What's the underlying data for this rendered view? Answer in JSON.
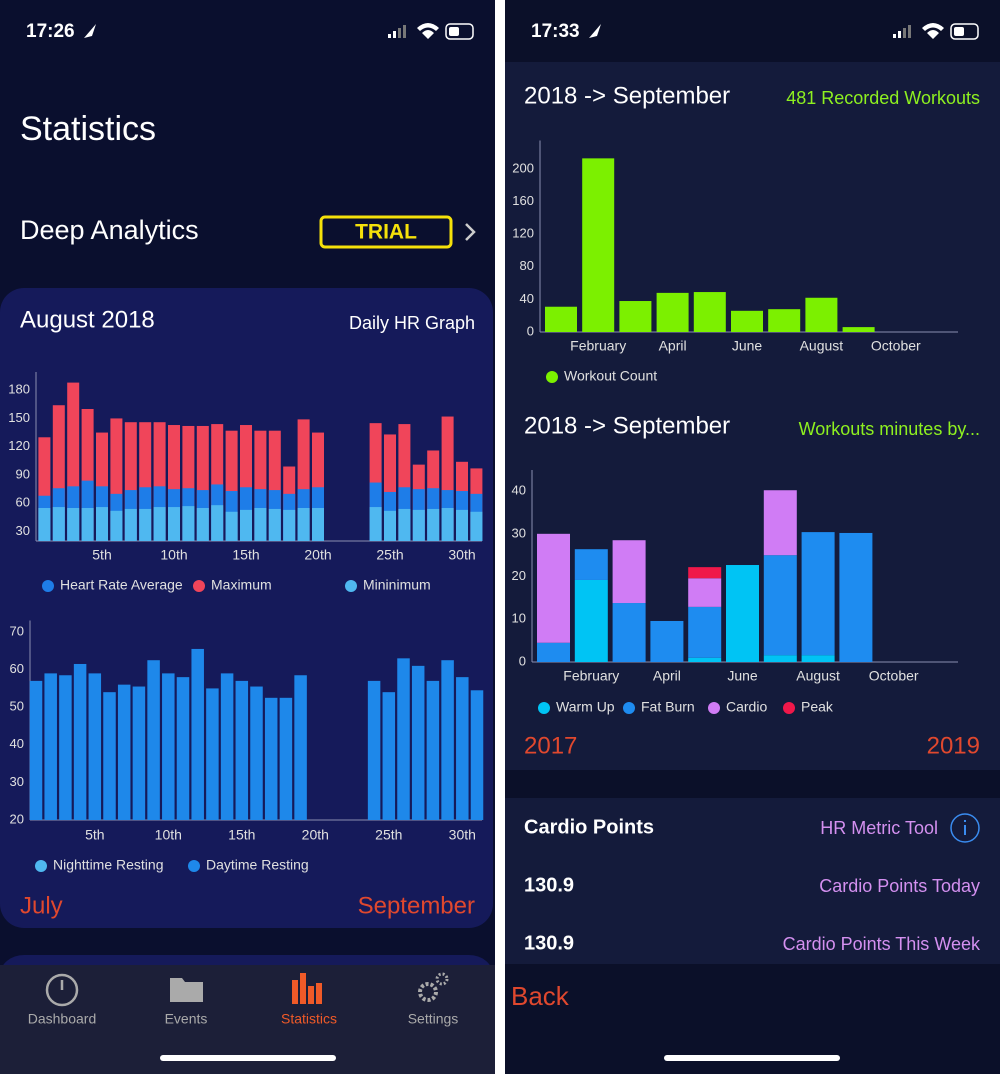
{
  "left_screen": {
    "status_time": "17:26",
    "heading": "Statistics",
    "deep_analytics": "Deep Analytics",
    "badge": "TRIAL",
    "range_start": "July",
    "range_end": "September",
    "tabs": [
      "Dashboard",
      "Events",
      "Statistics",
      "Settings"
    ]
  },
  "right_screen": {
    "status_time": "17:33",
    "range_start": "2017",
    "range_end": "2019",
    "cardio_points": {
      "title": "Cardio Points",
      "tool": "HR Metric Tool",
      "rows": [
        {
          "value": 130.9,
          "label": "Cardio Points Today"
        },
        {
          "value": 130.9,
          "label": "Cardio Points This Week"
        }
      ]
    },
    "back": "Back"
  },
  "chart_data": [
    {
      "type": "bar",
      "stacked": false,
      "title": "August 2018",
      "subtitle": "Daily HR Graph",
      "categories": [
        null,
        null,
        null,
        null,
        "5th",
        null,
        null,
        null,
        null,
        "10th",
        null,
        null,
        null,
        null,
        "15th",
        null,
        null,
        null,
        null,
        "20th",
        null,
        null,
        null,
        null,
        "25th",
        null,
        null,
        null,
        null,
        "30th",
        null
      ],
      "series": [
        {
          "name": "Heart Rate Average",
          "color": "#1e7de8",
          "values": [
            68,
            76,
            78,
            84,
            78,
            70,
            74,
            77,
            78,
            75,
            76,
            74,
            80,
            73,
            77,
            75,
            74,
            70,
            75,
            77,
            null,
            null,
            null,
            82,
            72,
            77,
            75,
            76,
            74,
            73,
            70
          ]
        },
        {
          "name": "Maximum",
          "color": "#f0455a",
          "values": [
            130,
            164,
            188,
            160,
            135,
            150,
            146,
            146,
            146,
            143,
            142,
            142,
            144,
            137,
            143,
            137,
            137,
            99,
            149,
            135,
            null,
            null,
            null,
            145,
            133,
            144,
            101,
            116,
            152,
            104,
            97
          ]
        },
        {
          "name": "Mininimum",
          "color": "#4fb8f0",
          "values": [
            55,
            56,
            55,
            55,
            56,
            52,
            54,
            54,
            56,
            56,
            57,
            55,
            58,
            51,
            53,
            55,
            54,
            53,
            55,
            55,
            null,
            null,
            null,
            56,
            52,
            54,
            53,
            54,
            55,
            53,
            51
          ]
        }
      ],
      "ylim": [
        20,
        195
      ],
      "yticks": [
        30,
        60,
        90,
        120,
        150,
        180
      ]
    },
    {
      "type": "bar",
      "stacked": false,
      "categories": [
        null,
        null,
        null,
        null,
        "5th",
        null,
        null,
        null,
        null,
        "10th",
        null,
        null,
        null,
        null,
        "15th",
        null,
        null,
        null,
        null,
        "20th",
        null,
        null,
        null,
        null,
        "25th",
        null,
        null,
        null,
        null,
        "30th",
        null
      ],
      "series": [
        {
          "name": "Nighttime Resting",
          "color": "#4fb8f0",
          "values": [
            null,
            null,
            null,
            null,
            null,
            null,
            null,
            null,
            null,
            null,
            null,
            null,
            null,
            null,
            null,
            null,
            null,
            null,
            null,
            null,
            null,
            null,
            null,
            null,
            null,
            null,
            null,
            null,
            null,
            null,
            null
          ]
        },
        {
          "name": "Daytime Resting",
          "color": "#1e88ea",
          "values": [
            57,
            59,
            58.5,
            61.5,
            59,
            54,
            56,
            55.5,
            62.5,
            59,
            58,
            65.5,
            55,
            59,
            57,
            55.5,
            52.5,
            52.5,
            58.5,
            null,
            null,
            null,
            null,
            57,
            54,
            63,
            61,
            57,
            62.5,
            58,
            54.5
          ]
        }
      ],
      "ylim": [
        20,
        72
      ],
      "yticks": [
        20,
        30,
        40,
        50,
        60,
        70
      ]
    },
    {
      "type": "bar",
      "stacked": false,
      "title": "2018 -> September",
      "subtitle": "481 Recorded Workouts",
      "categories": [
        null,
        "February",
        null,
        "April",
        null,
        "June",
        null,
        "August",
        null,
        "October",
        null
      ],
      "series": [
        {
          "name": "Workout Count",
          "color": "#7cf000",
          "values": [
            31,
            213,
            38,
            48,
            49,
            26,
            28,
            42,
            6,
            null,
            null
          ]
        }
      ],
      "ylim": [
        0,
        230
      ],
      "yticks": [
        0,
        40,
        80,
        120,
        160,
        200
      ]
    },
    {
      "type": "bar",
      "stacked": true,
      "title": "2018 -> September",
      "subtitle": "Workouts minutes by...",
      "categories": [
        null,
        "February",
        null,
        "April",
        null,
        "June",
        null,
        "August",
        null,
        "October",
        null
      ],
      "series": [
        {
          "name": "Warm Up",
          "color": "#00c4f4",
          "values": [
            null,
            19.2,
            null,
            null,
            1,
            22.7,
            1.6,
            1.6,
            null,
            null,
            null
          ]
        },
        {
          "name": "Fat Burn",
          "color": "#1e8cf0",
          "values": [
            4.5,
            7.2,
            13.8,
            9.6,
            11.9,
            null,
            23.4,
            28.8,
            30.2,
            null,
            null
          ]
        },
        {
          "name": "Cardio",
          "color": "#d07cf5",
          "values": [
            25.5,
            null,
            14.7,
            null,
            6.7,
            null,
            15.2,
            null,
            null,
            null,
            null
          ]
        },
        {
          "name": "Peak",
          "color": "#f0184a",
          "values": [
            null,
            null,
            null,
            null,
            2.6,
            null,
            null,
            null,
            null,
            null,
            null
          ]
        }
      ],
      "ylim": [
        0,
        44
      ],
      "yticks": [
        0,
        10,
        20,
        30,
        40
      ]
    }
  ]
}
